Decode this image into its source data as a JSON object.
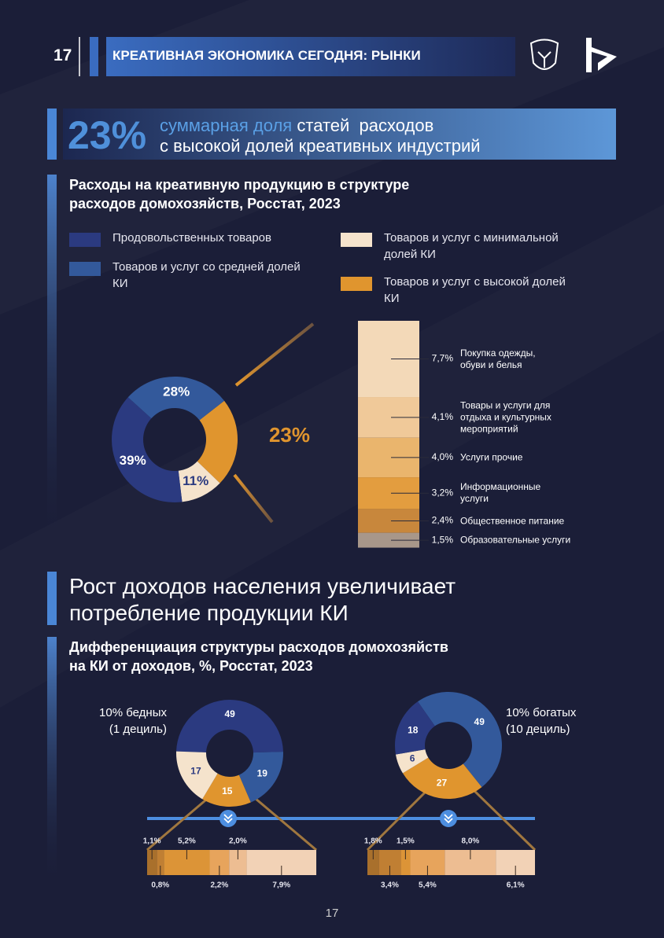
{
  "header": {
    "number": "17",
    "title": "КРЕАТИВНАЯ ЭКОНОМИКА СЕГОДНЯ: РЫНКИ"
  },
  "highlight": {
    "value": "23%",
    "text_accent": "суммарная доля",
    "text_1": "статей  расходов",
    "text_2": "с высокой долей креативных индустрий"
  },
  "section_title": "Рост доходов населения увеличивает потребление продукции КИ",
  "footer": {
    "page_number": "17"
  },
  "chart_data": [
    {
      "type": "donut",
      "title": "Расходы на креативную продукцию в структуре расходов домохозяйств, Росстат, 2023",
      "categories": [
        "Продовольственных товаров",
        "Товаров и услуг со средней долей КИ",
        "Товаров и услуг с минимальной долей КИ",
        "Товаров и услуг с высокой долей КИ"
      ],
      "values": [
        39,
        28,
        11,
        23
      ],
      "value_labels": [
        "39%",
        "28%",
        "11%",
        "23%"
      ],
      "colors": [
        "#2b3a80",
        "#33599b",
        "#f5e3cc",
        "#e0952e"
      ]
    },
    {
      "type": "stacked-bar",
      "categories": [
        "Покупка одежды, обуви и белья",
        "Товары и услуги для отдыха и культурных мероприятий",
        "Услуги прочие",
        "Информационные услуги",
        "Общественное питание",
        "Образовательные услуги"
      ],
      "values": [
        7.7,
        4.1,
        4.0,
        3.2,
        2.4,
        1.5
      ],
      "value_labels": [
        "7,7%",
        "4,1%",
        "4,0%",
        "3,2%",
        "2,4%",
        "1,5%"
      ],
      "colors": [
        "#f3d9b8",
        "#f0c999",
        "#eab56d",
        "#e39d3f",
        "#c8873c",
        "#a8978a"
      ]
    },
    {
      "type": "donut",
      "title": "Дифференциация структуры расходов домохозяйств на КИ от доходов, %, Росстат, 2023",
      "label": [
        "10% бедных",
        "(1 дециль)"
      ],
      "values": [
        49,
        19,
        17,
        15
      ],
      "colors": [
        "#2b3a80",
        "#33599b",
        "#f5e3cc",
        "#e0952e"
      ]
    },
    {
      "type": "donut",
      "label": [
        "10% богатых",
        "(10 дециль)"
      ],
      "values": [
        18,
        49,
        6,
        27
      ],
      "colors": [
        "#2b3a80",
        "#33599b",
        "#f5e3cc",
        "#e0952e"
      ]
    },
    {
      "type": "stacked-hbar",
      "values": [
        1.1,
        0.8,
        5.2,
        2.2,
        2.0,
        7.9
      ],
      "value_labels": [
        "1,1%",
        "0,8%",
        "5,2%",
        "2,2%",
        "2,0%",
        "7,9%"
      ],
      "colors": [
        "#a9702c",
        "#c07f33",
        "#dc9437",
        "#e7a45c",
        "#edbd92",
        "#f2d2b6"
      ]
    },
    {
      "type": "stacked-hbar",
      "values": [
        1.8,
        3.4,
        1.5,
        5.4,
        8.0,
        6.1
      ],
      "value_labels": [
        "1,8%",
        "3,4%",
        "1,5%",
        "5,4%",
        "8,0%",
        "6,1%"
      ],
      "colors": [
        "#a9702c",
        "#c07f33",
        "#dc9437",
        "#e7a45c",
        "#edbd92",
        "#f2d2b6"
      ]
    }
  ]
}
